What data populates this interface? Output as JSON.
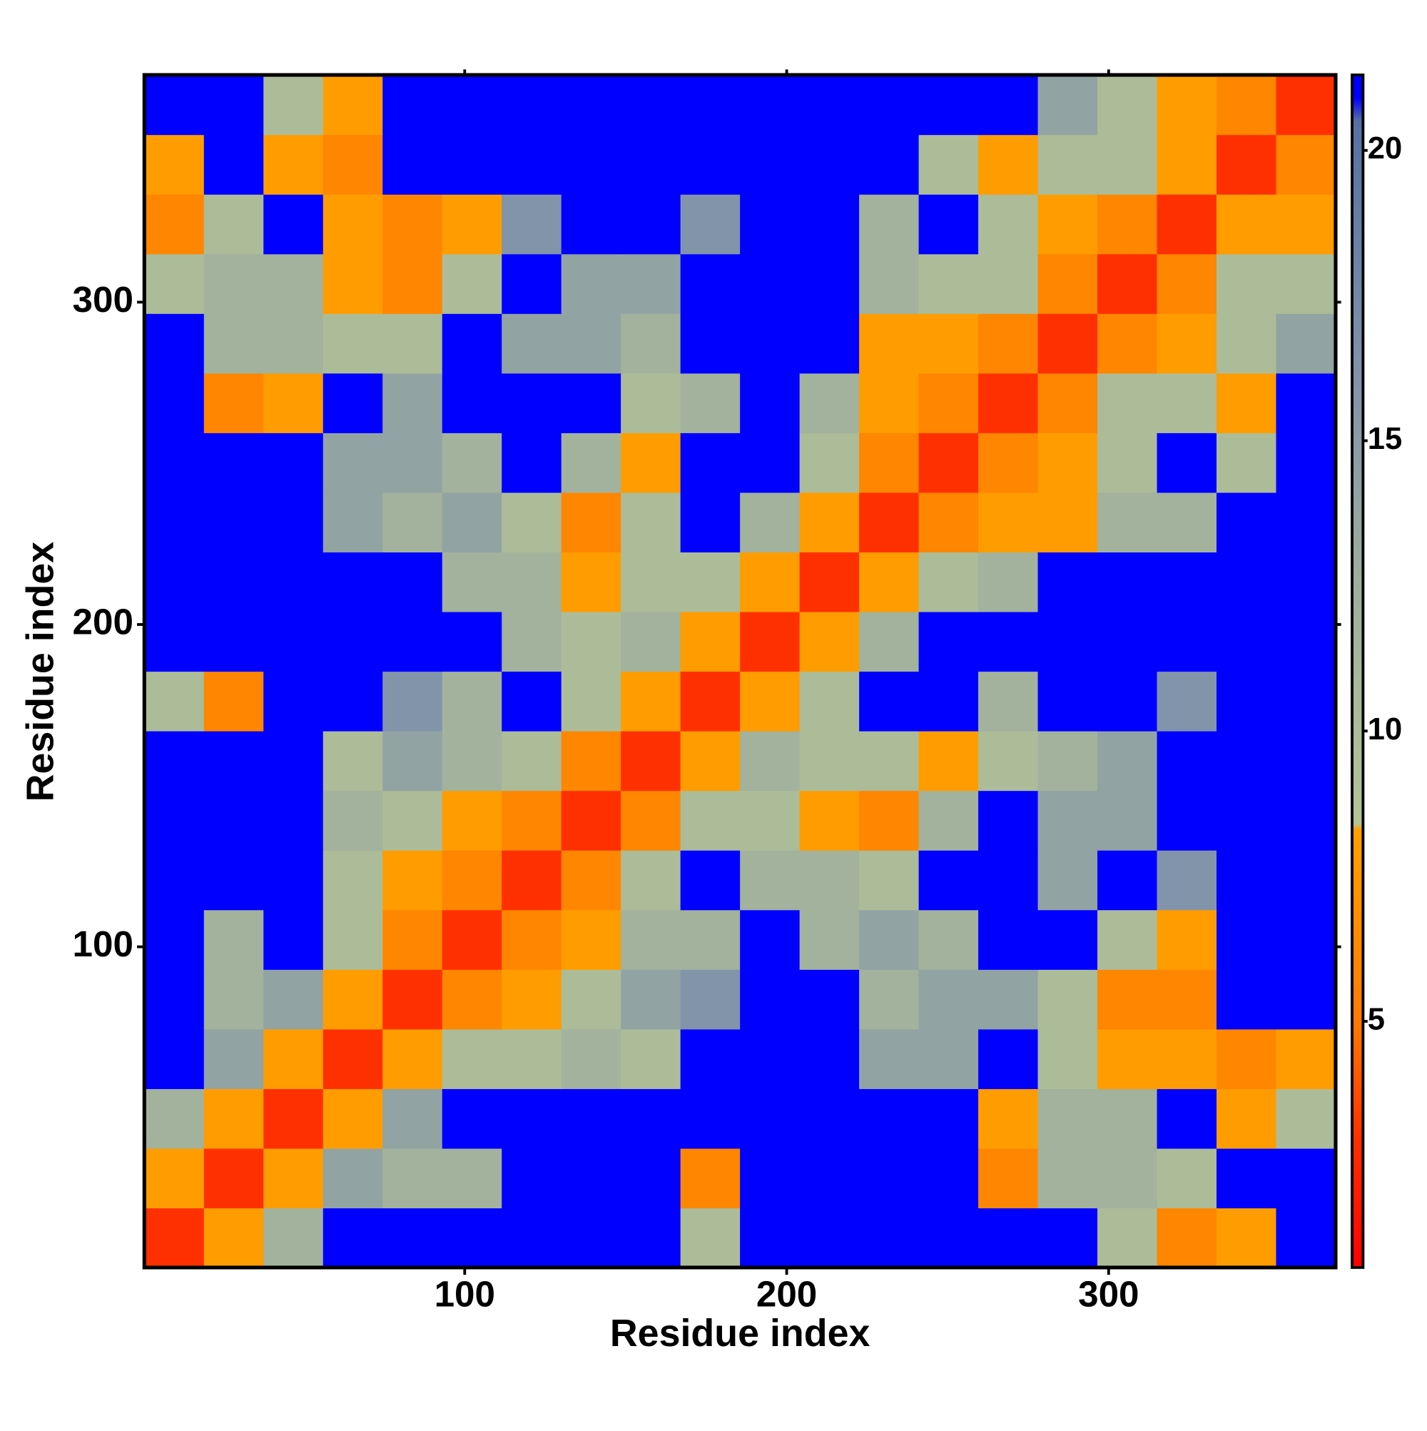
{
  "chart_data": {
    "type": "heatmap",
    "x_label": "Residue index",
    "y_label": "Residue index",
    "xbins": [
      0.5,
      19,
      37.5,
      56,
      74.5,
      93,
      111.5,
      130,
      148.5,
      167,
      185.5,
      204,
      222.5,
      241,
      259.5,
      278,
      296.5,
      315,
      333.5,
      352,
      370.5
    ],
    "ybins": [
      0.5,
      19,
      37.5,
      56,
      74.5,
      93,
      111.5,
      130,
      148.5,
      167,
      185.5,
      204,
      222.5,
      241,
      259.5,
      278,
      296.5,
      315,
      333.5,
      352,
      370.5
    ],
    "z": [
      [
        3,
        8,
        12,
        21,
        21,
        21,
        21,
        21,
        21,
        10,
        21,
        21,
        21,
        21,
        21,
        21,
        10,
        6,
        8,
        21
      ],
      [
        8,
        3,
        8,
        14,
        12,
        12,
        21,
        21,
        21,
        6,
        21,
        21,
        21,
        21,
        6,
        12,
        12,
        10,
        21,
        21
      ],
      [
        12,
        8,
        3,
        8,
        14,
        21,
        21,
        21,
        21,
        21,
        21,
        21,
        21,
        21,
        8,
        12,
        12,
        21,
        8,
        10
      ],
      [
        21,
        14,
        8,
        3,
        8,
        10,
        10,
        12,
        10,
        21,
        21,
        21,
        14,
        14,
        21,
        10,
        8,
        8,
        6,
        8
      ],
      [
        21,
        12,
        14,
        8,
        3,
        6,
        8,
        10,
        14,
        16,
        21,
        21,
        12,
        14,
        14,
        10,
        6,
        6,
        21,
        21
      ],
      [
        21,
        12,
        21,
        10,
        6,
        3,
        6,
        8,
        12,
        12,
        21,
        12,
        14,
        12,
        21,
        21,
        10,
        8,
        21,
        21
      ],
      [
        21,
        21,
        21,
        10,
        8,
        6,
        3,
        6,
        10,
        21,
        12,
        12,
        10,
        21,
        21,
        14,
        21,
        16,
        21,
        21
      ],
      [
        21,
        21,
        21,
        12,
        10,
        8,
        6,
        3,
        6,
        10,
        10,
        8,
        6,
        12,
        21,
        14,
        14,
        21,
        21,
        21
      ],
      [
        21,
        21,
        21,
        10,
        14,
        12,
        10,
        6,
        3,
        8,
        12,
        10,
        10,
        8,
        10,
        12,
        14,
        21,
        21,
        21
      ],
      [
        10,
        6,
        21,
        21,
        16,
        12,
        21,
        10,
        8,
        3,
        8,
        10,
        21,
        21,
        12,
        21,
        21,
        16,
        21,
        21
      ],
      [
        21,
        21,
        21,
        21,
        21,
        21,
        12,
        10,
        12,
        8,
        3,
        8,
        12,
        21,
        21,
        21,
        21,
        21,
        21,
        21
      ],
      [
        21,
        21,
        21,
        21,
        21,
        12,
        12,
        8,
        10,
        10,
        8,
        3,
        8,
        10,
        12,
        21,
        21,
        21,
        21,
        21
      ],
      [
        21,
        21,
        21,
        14,
        12,
        14,
        10,
        6,
        10,
        21,
        12,
        8,
        3,
        6,
        8,
        8,
        12,
        12,
        21,
        21
      ],
      [
        21,
        21,
        21,
        14,
        14,
        12,
        21,
        12,
        8,
        21,
        21,
        10,
        6,
        3,
        6,
        8,
        10,
        21,
        10,
        21
      ],
      [
        21,
        6,
        8,
        21,
        14,
        21,
        21,
        21,
        10,
        12,
        21,
        12,
        8,
        6,
        3,
        6,
        10,
        10,
        8,
        21
      ],
      [
        21,
        12,
        12,
        10,
        10,
        21,
        14,
        14,
        12,
        21,
        21,
        21,
        8,
        8,
        6,
        3,
        6,
        8,
        10,
        14
      ],
      [
        10,
        12,
        12,
        8,
        6,
        10,
        21,
        14,
        14,
        21,
        21,
        21,
        12,
        10,
        10,
        6,
        3,
        6,
        10,
        10
      ],
      [
        6,
        10,
        21,
        8,
        6,
        8,
        16,
        21,
        21,
        16,
        21,
        21,
        12,
        21,
        10,
        8,
        6,
        3,
        8,
        8
      ],
      [
        8,
        21,
        8,
        6,
        21,
        21,
        21,
        21,
        21,
        21,
        21,
        21,
        21,
        10,
        8,
        10,
        10,
        8,
        3,
        6
      ],
      [
        21,
        21,
        10,
        8,
        21,
        21,
        21,
        21,
        21,
        21,
        21,
        21,
        21,
        21,
        21,
        14,
        10,
        8,
        6,
        3
      ]
    ],
    "xlim": [
      0.5,
      370.5
    ],
    "ylim": [
      0.5,
      370.5
    ],
    "xticks": [
      100,
      200,
      300
    ],
    "yticks": [
      100,
      200,
      300
    ],
    "zlim": [
      0.76,
      21.3
    ],
    "zticks": [
      5,
      10,
      15,
      20
    ],
    "colorscale": [
      [
        0.76,
        "#ff0000"
      ],
      [
        3,
        "#ff3000"
      ],
      [
        5,
        "#ff7a00"
      ],
      [
        8.3,
        "#ffa000"
      ],
      [
        8.4,
        "#b4c494"
      ],
      [
        12,
        "#a2b29c"
      ],
      [
        16,
        "#8294aa"
      ],
      [
        20.5,
        "#5572a4"
      ],
      [
        20.9,
        "#0000ff"
      ]
    ]
  }
}
